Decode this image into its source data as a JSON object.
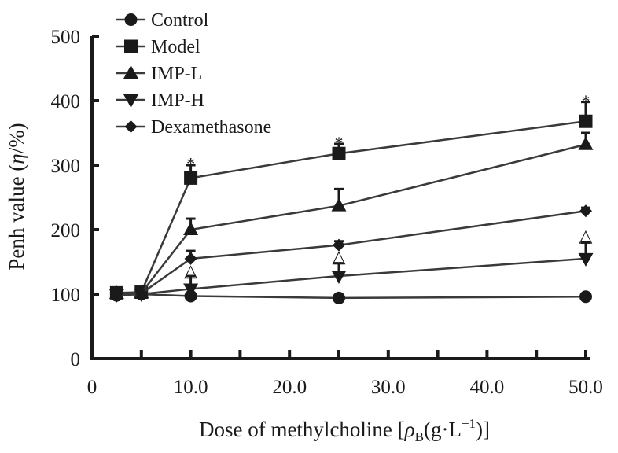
{
  "chart_data": {
    "type": "line",
    "title": "",
    "xlabel": {
      "prefix": "Dose of methylcholine [",
      "rho": "ρ",
      "sub": "B",
      "mid": "(g·L",
      "sup": "−1",
      "suffix": ")]"
    },
    "ylabel": {
      "prefix": "Penh value (",
      "eta": "η",
      "suffix": "/%)"
    },
    "xlim": [
      0,
      50
    ],
    "ylim": [
      0,
      500
    ],
    "x_ticks": [
      0,
      10,
      20,
      30,
      40,
      50
    ],
    "x_tick_labels": [
      "0",
      "10.0",
      "20.0",
      "30.0",
      "40.0",
      "50.0"
    ],
    "y_ticks": [
      0,
      100,
      200,
      300,
      400,
      500
    ],
    "y_tick_labels": [
      "0",
      "100",
      "200",
      "300",
      "400",
      "500"
    ],
    "legend_position": "top-left",
    "series": [
      {
        "name": "Control",
        "marker": "circle",
        "x": [
          2.5,
          5,
          10,
          25,
          50
        ],
        "y": [
          98,
          100,
          97,
          94,
          96
        ],
        "error": [
          0,
          0,
          0,
          0,
          0
        ]
      },
      {
        "name": "Model",
        "marker": "square",
        "x": [
          2.5,
          5,
          10,
          25,
          50
        ],
        "y": [
          102,
          103,
          280,
          318,
          368
        ],
        "error": [
          0,
          0,
          20,
          15,
          30
        ]
      },
      {
        "name": "IMP-L",
        "marker": "triangle-up",
        "x": [
          2.5,
          5,
          10,
          25,
          50
        ],
        "y": [
          101,
          102,
          200,
          237,
          332
        ],
        "error": [
          0,
          0,
          17,
          26,
          18
        ]
      },
      {
        "name": "IMP-H",
        "marker": "triangle-down",
        "x": [
          2.5,
          5,
          10,
          25,
          50
        ],
        "y": [
          99,
          100,
          108,
          128,
          155
        ],
        "error": [
          0,
          0,
          20,
          20,
          25
        ]
      },
      {
        "name": "Dexamethasone",
        "marker": "diamond",
        "x": [
          2.5,
          5,
          10,
          25,
          50
        ],
        "y": [
          100,
          101,
          155,
          176,
          229
        ],
        "error": [
          0,
          0,
          12,
          6,
          5
        ]
      }
    ],
    "annotations": [
      {
        "text": "*",
        "x": 10,
        "y": 308
      },
      {
        "text": "*",
        "x": 25,
        "y": 340
      },
      {
        "text": "*",
        "x": 50,
        "y": 405
      },
      {
        "text": "△",
        "x": 10,
        "y": 135
      },
      {
        "text": "△",
        "x": 25,
        "y": 157
      },
      {
        "text": "△",
        "x": 50,
        "y": 189
      }
    ]
  }
}
